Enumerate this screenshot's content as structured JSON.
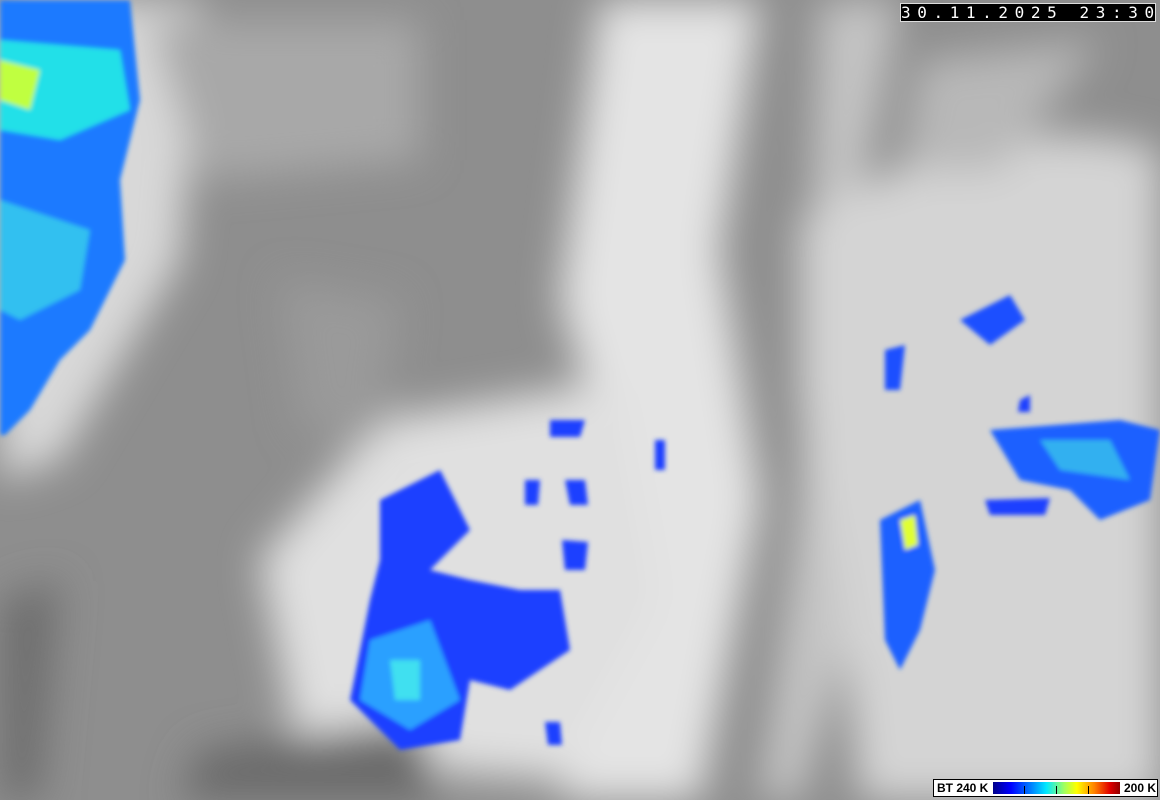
{
  "timestamp": "30.11.2025 23:30",
  "colorbar": {
    "label_left": "BT 240 K",
    "label_right": "200 K",
    "colors": [
      "#00008a",
      "#0000ff",
      "#0080ff",
      "#00e8ff",
      "#a0ff60",
      "#ffff00",
      "#ff8000",
      "#e00000",
      "#900000"
    ]
  },
  "imagery": {
    "type": "infrared satellite brightness temperature",
    "background": "#8c8c8c"
  }
}
